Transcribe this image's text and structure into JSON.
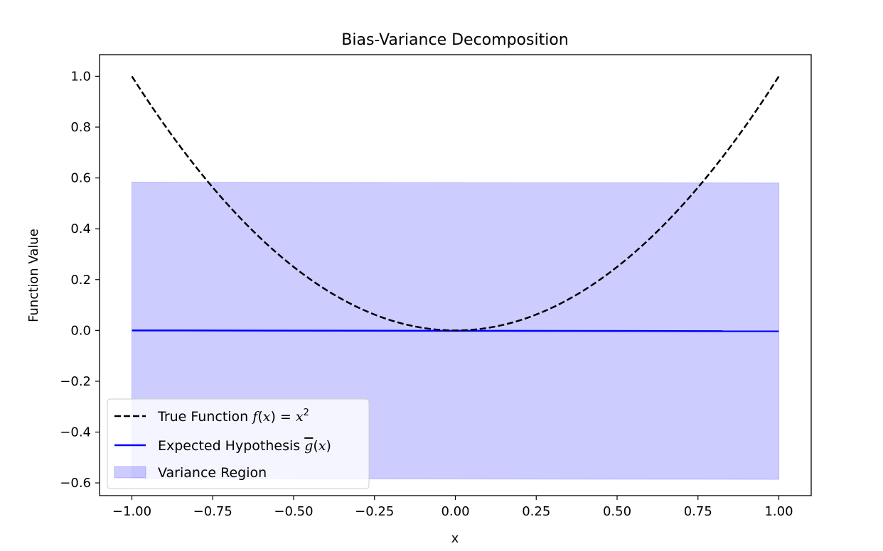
{
  "chart_data": {
    "type": "line",
    "title": "Bias-Variance Decomposition",
    "xlabel": "x",
    "ylabel": "Function Value",
    "xlim": [
      -1.1,
      1.1
    ],
    "ylim": [
      -0.65,
      1.085
    ],
    "xticks": [
      -1.0,
      -0.75,
      -0.5,
      -0.25,
      0.0,
      0.25,
      0.5,
      0.75,
      1.0
    ],
    "xtick_labels": [
      "−1.00",
      "−0.75",
      "−0.50",
      "−0.25",
      "0.00",
      "0.25",
      "0.50",
      "0.75",
      "1.00"
    ],
    "yticks": [
      -0.6,
      -0.4,
      -0.2,
      0.0,
      0.2,
      0.4,
      0.6,
      0.8,
      1.0
    ],
    "ytick_labels": [
      "−0.6",
      "−0.4",
      "−0.2",
      "0.0",
      "0.2",
      "0.4",
      "0.6",
      "0.8",
      "1.0"
    ],
    "grid": false,
    "legend_position": "lower-left",
    "series": [
      {
        "name": "True Function f(x) = x²",
        "kind": "line",
        "style": "dashed",
        "color": "#000000",
        "function": "x^2",
        "x_range": [
          -1.0,
          1.0
        ]
      },
      {
        "name": "Expected Hypothesis ḡ(x)",
        "kind": "line",
        "style": "solid",
        "color": "#0000ff",
        "x": [
          -1.0,
          1.0
        ],
        "y": [
          0.0,
          -0.003
        ]
      },
      {
        "name": "Variance Region",
        "kind": "fill_between",
        "color": "#0000ff",
        "opacity": 0.2,
        "x": [
          -1.0,
          1.0
        ],
        "upper": [
          0.583,
          0.58
        ],
        "lower": [
          -0.583,
          -0.586
        ]
      }
    ]
  }
}
